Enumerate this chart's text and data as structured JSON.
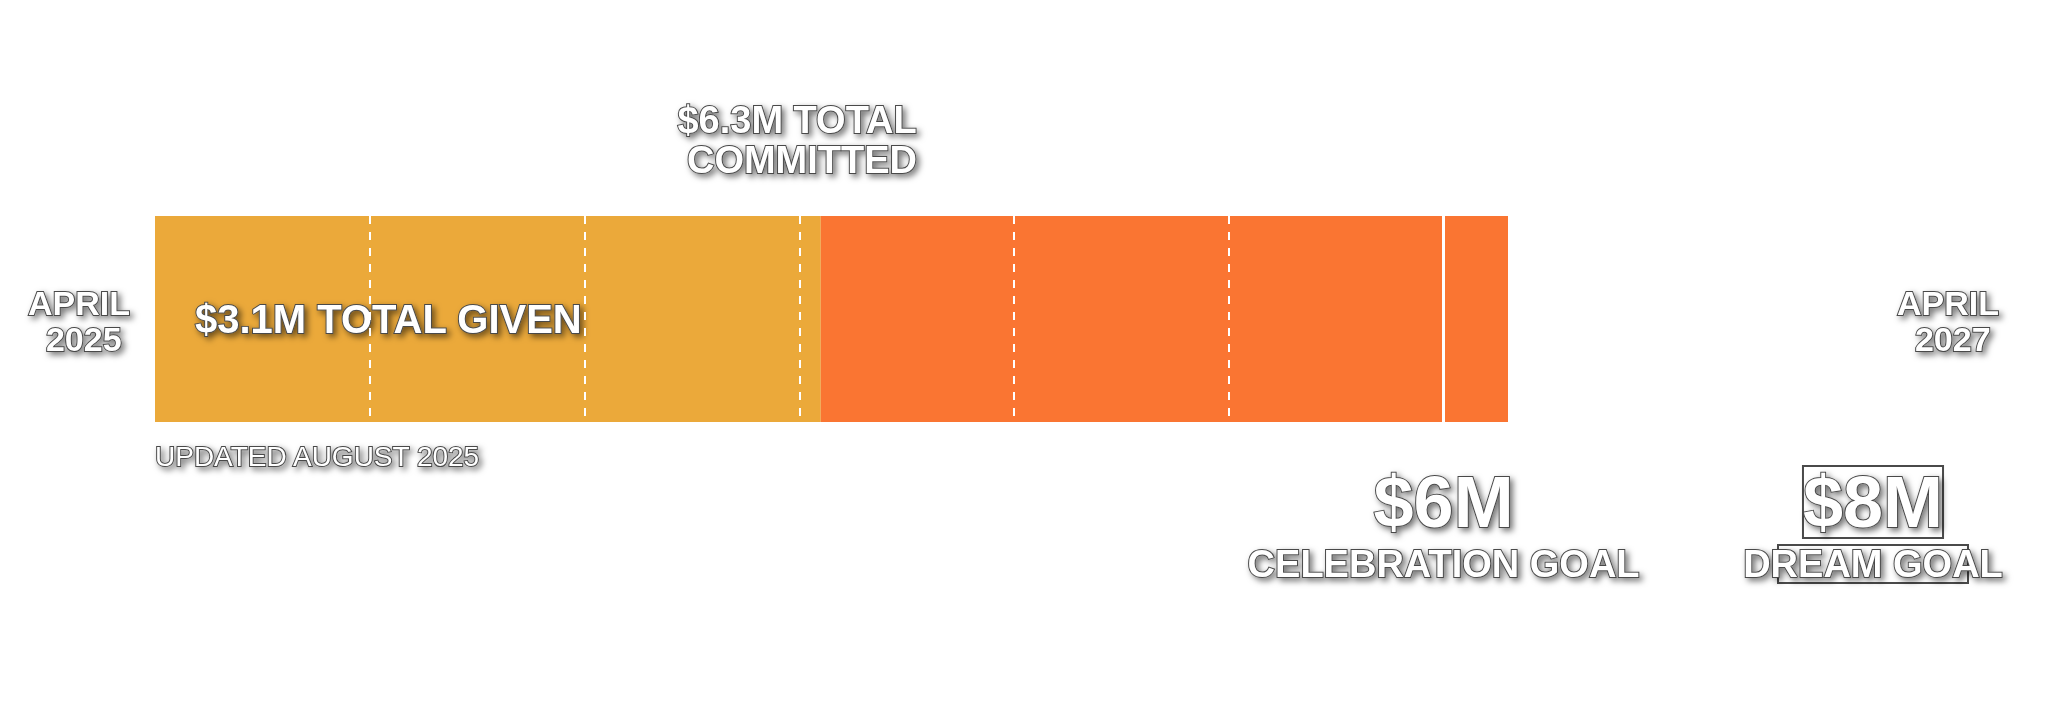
{
  "chart_data": {
    "type": "bar",
    "orientation": "horizontal",
    "stacked": true,
    "categories": [
      null
    ],
    "series": [
      {
        "color": "#eba93a",
        "values": [
          3.1
        ],
        "value_labels": [
          "$3.1M TOTAL GIVEN"
        ]
      },
      {
        "color": "#fa7532",
        "values": [
          3.2
        ]
      }
    ],
    "xticks": [
      {
        "value": 1,
        "label": null
      },
      {
        "value": 2,
        "label": null
      },
      {
        "value": 3,
        "label": null
      },
      {
        "value": 4,
        "label": null
      },
      {
        "value": 5,
        "label": null
      }
    ],
    "grid": "x",
    "ref_lines": [
      {
        "axis": "x",
        "value": 6,
        "label": "$6M CELEBRATION GOAL",
        "color": "#ffffff",
        "line_style": "solid"
      }
    ],
    "annotations": [
      "APRIL 2025",
      "APRIL 2027",
      "$6.3M TOTAL COMMITTED",
      "UPDATED AUGUST 2025",
      "$8M DREAM GOAL"
    ]
  }
}
